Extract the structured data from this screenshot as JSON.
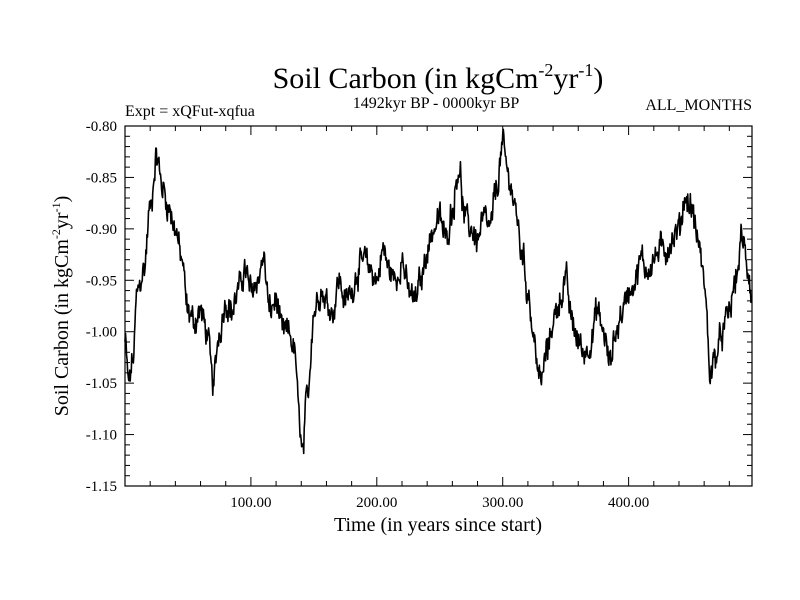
{
  "chart_data": {
    "type": "line",
    "title": "Soil Carbon (in kgCm",
    "title_sup1": "-2",
    "title_mid": "yr",
    "title_sup2": "-1",
    "title_end": ")",
    "subtitle_left": "Expt = xQFut-xqfua",
    "subtitle_center": "1492kyr BP - 0000kyr BP",
    "subtitle_right": "ALL_MONTHS",
    "xlabel": "Time (in years since start)",
    "ylabel": "Soil Carbon (in kgCm",
    "ylabel_sup1": "-2",
    "ylabel_mid": "yr",
    "ylabel_sup2": "-1",
    "ylabel_end": ")",
    "xlim": [
      0,
      498
    ],
    "ylim": [
      -1.15,
      -0.8
    ],
    "x_ticks": [
      {
        "value": 100,
        "label": "100.00"
      },
      {
        "value": 200,
        "label": "200.00"
      },
      {
        "value": 300,
        "label": "300.00"
      },
      {
        "value": 400,
        "label": "400.00"
      }
    ],
    "y_ticks": [
      {
        "value": -0.8,
        "label": "-0.80"
      },
      {
        "value": -0.85,
        "label": "-0.85"
      },
      {
        "value": -0.9,
        "label": "-0.90"
      },
      {
        "value": -0.95,
        "label": "-0.95"
      },
      {
        "value": -1.0,
        "label": "-1.00"
      },
      {
        "value": -1.05,
        "label": "-1.05"
      },
      {
        "value": -1.1,
        "label": "-1.10"
      },
      {
        "value": -1.15,
        "label": "-1.15"
      }
    ],
    "series": [
      {
        "name": "Soil Carbon",
        "color": "#000000",
        "anchors_x": [
          0,
          3,
          6,
          10,
          15,
          20,
          25,
          30,
          35,
          40,
          45,
          50,
          55,
          60,
          65,
          70,
          75,
          80,
          85,
          90,
          95,
          100,
          105,
          110,
          115,
          120,
          125,
          130,
          135,
          138,
          141,
          145,
          150,
          155,
          160,
          165,
          170,
          175,
          180,
          185,
          190,
          195,
          200,
          205,
          210,
          215,
          220,
          225,
          230,
          235,
          240,
          245,
          250,
          255,
          260,
          265,
          270,
          275,
          280,
          285,
          290,
          295,
          300,
          305,
          310,
          315,
          320,
          325,
          330,
          335,
          340,
          345,
          350,
          355,
          360,
          365,
          370,
          375,
          380,
          385,
          390,
          395,
          400,
          405,
          410,
          415,
          420,
          425,
          430,
          435,
          440,
          445,
          450,
          455,
          460,
          465,
          470,
          475,
          480,
          485,
          490,
          495,
          498
        ],
        "anchors_y": [
          -1.01,
          -1.05,
          -1.03,
          -0.96,
          -0.94,
          -0.88,
          -0.83,
          -0.86,
          -0.88,
          -0.9,
          -0.93,
          -0.98,
          -0.99,
          -0.98,
          -1.0,
          -1.05,
          -1.0,
          -0.97,
          -0.98,
          -0.96,
          -0.94,
          -0.96,
          -0.95,
          -0.93,
          -0.98,
          -0.97,
          -1.0,
          -1.0,
          -1.02,
          -1.08,
          -1.12,
          -1.06,
          -0.98,
          -0.96,
          -0.97,
          -0.98,
          -0.95,
          -0.97,
          -0.96,
          -0.94,
          -0.93,
          -0.94,
          -0.95,
          -0.92,
          -0.94,
          -0.95,
          -0.93,
          -0.96,
          -0.97,
          -0.95,
          -0.92,
          -0.9,
          -0.89,
          -0.91,
          -0.88,
          -0.84,
          -0.89,
          -0.9,
          -0.91,
          -0.89,
          -0.9,
          -0.86,
          -0.82,
          -0.85,
          -0.88,
          -0.92,
          -0.96,
          -1.01,
          -1.05,
          -1.02,
          -0.99,
          -0.97,
          -0.95,
          -0.99,
          -1.01,
          -1.02,
          -1.01,
          -0.98,
          -1.0,
          -1.03,
          -1.0,
          -0.98,
          -0.96,
          -0.95,
          -0.93,
          -0.94,
          -0.93,
          -0.92,
          -0.92,
          -0.91,
          -0.9,
          -0.87,
          -0.88,
          -0.91,
          -0.95,
          -1.04,
          -1.02,
          -1.0,
          -0.98,
          -0.95,
          -0.91,
          -0.94,
          -0.97
        ],
        "noise_amplitude": 0.009,
        "noise_seed": 12345
      }
    ]
  }
}
